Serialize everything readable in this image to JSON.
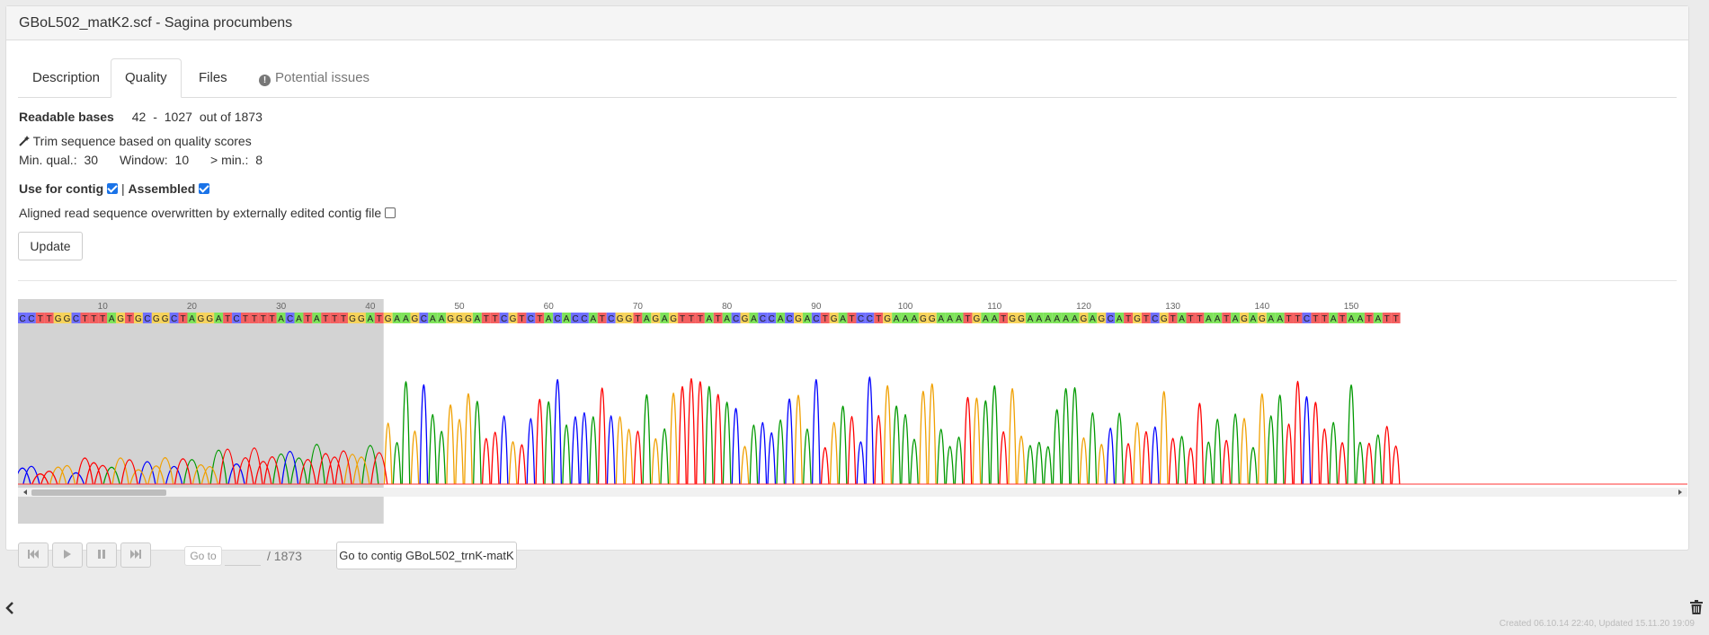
{
  "header": {
    "title": "GBoL502_matK2.scf - Sagina procumbens"
  },
  "tabs": [
    {
      "label": "Description"
    },
    {
      "label": "Quality"
    },
    {
      "label": "Files"
    },
    {
      "label": "Potential issues"
    }
  ],
  "readable": {
    "label": "Readable bases",
    "start": "42",
    "dash": "-",
    "end": "1027",
    "out_of": "out of 1873"
  },
  "trim": {
    "label": "Trim sequence based on quality scores",
    "min_qual_label": "Min. qual.:",
    "min_qual": "30",
    "window_label": "Window:",
    "window": "10",
    "min_label": "> min.:",
    "min": "8"
  },
  "flags": {
    "use_for_contig": "Use for contig",
    "separator": "|",
    "assembled": "Assembled",
    "use_for_contig_checked": true,
    "assembled_checked": true,
    "overwrite_label": "Aligned read sequence overwritten by externally edited contig file",
    "overwrite_checked": false
  },
  "update_button": "Update",
  "chromatogram": {
    "sequence": "CCTTGGCTTTAGTGCGGCTAGGATCTTTTACATATTTGGATGAAGCAAGGGATTCGTCTACACCATCGGTAGAGTTTATACGACCACGACTGATCCTGAAAGGAAATGAATGGAAAAAAGAGCATGTCGTATTAATAGAGAATTCTTATAATATT",
    "position_labels": [
      "10",
      "20",
      "30",
      "40",
      "50",
      "60",
      "70",
      "80",
      "90",
      "100",
      "110",
      "120",
      "130",
      "140",
      "150"
    ],
    "trimmed_start_bases": 41,
    "base_colors": {
      "A": "#7ee35a",
      "C": "#6f6fff",
      "G": "#f7d35a",
      "T": "#f46060"
    },
    "trace_colors": {
      "A": "#009900",
      "C": "#0000ff",
      "G": "#f0a000",
      "T": "#ff0000"
    }
  },
  "navigation": {
    "goto_label": "Go to",
    "goto_value": "",
    "total": "/ 1873",
    "contig_button": "Go to contig GBoL502_trnK-matK"
  },
  "footer": {
    "text": "Created 06.10.14 22:40, Updated 15.11.20 19:09"
  }
}
